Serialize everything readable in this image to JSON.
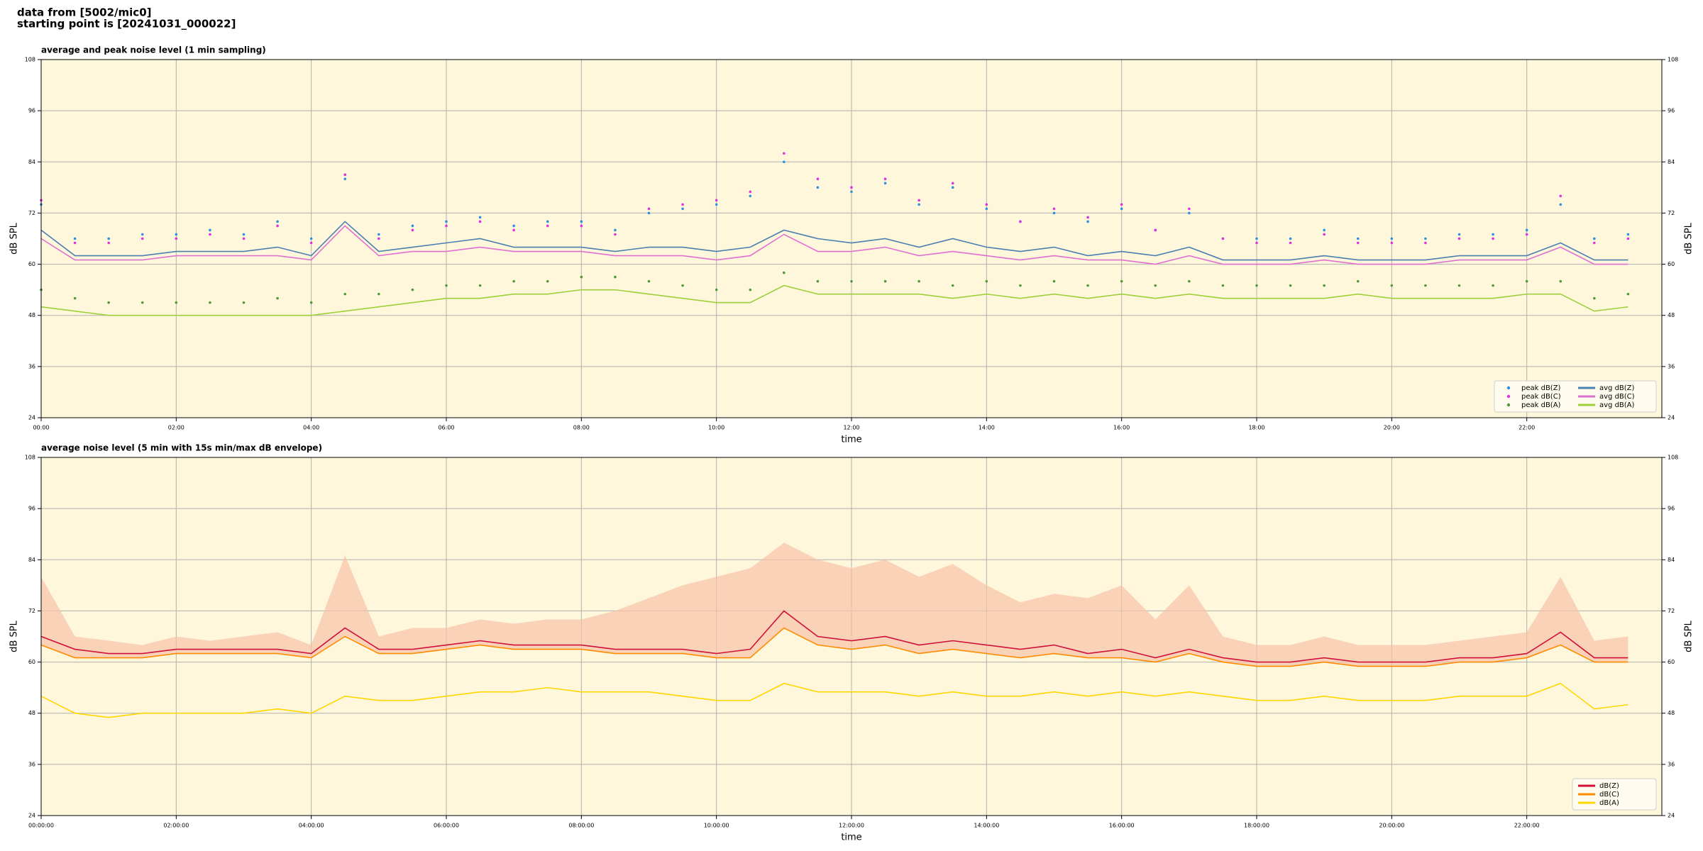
{
  "header": {
    "line1": "data from [5002/mic0]",
    "line2": "starting point is [20241031_000022]"
  },
  "chart_data": [
    {
      "type": "line",
      "title": "average and peak noise level (1 min sampling)",
      "xlabel": "time",
      "ylabel": "dB SPL",
      "xlim": [
        0,
        24
      ],
      "ylim": [
        24,
        108
      ],
      "yticks": [
        24,
        36,
        48,
        60,
        72,
        84,
        96,
        108
      ],
      "xticks": [
        {
          "value": 0,
          "label": "00:00"
        },
        {
          "value": 2,
          "label": "02:00"
        },
        {
          "value": 4,
          "label": "04:00"
        },
        {
          "value": 6,
          "label": "06:00"
        },
        {
          "value": 8,
          "label": "08:00"
        },
        {
          "value": 10,
          "label": "10:00"
        },
        {
          "value": 12,
          "label": "12:00"
        },
        {
          "value": 14,
          "label": "14:00"
        },
        {
          "value": 16,
          "label": "16:00"
        },
        {
          "value": 18,
          "label": "18:00"
        },
        {
          "value": 20,
          "label": "20:00"
        },
        {
          "value": 22,
          "label": "22:00"
        }
      ],
      "grid": true,
      "legend": "lower right",
      "legend_columns": 2,
      "background": "#fff7dc",
      "x": [
        0,
        0.5,
        1,
        1.5,
        2,
        2.5,
        3,
        3.5,
        4,
        4.5,
        5,
        5.5,
        6,
        6.5,
        7,
        7.5,
        8,
        8.5,
        9,
        9.5,
        10,
        10.5,
        11,
        11.5,
        12,
        12.5,
        13,
        13.5,
        14,
        14.5,
        15,
        15.5,
        16,
        16.5,
        17,
        17.5,
        18,
        18.5,
        19,
        19.5,
        20,
        20.5,
        21,
        21.5,
        22,
        22.5,
        23,
        23.5
      ],
      "series": [
        {
          "name": "peak dB(Z)",
          "color": "#2f8fe0",
          "marker": "dot",
          "values": [
            74,
            66,
            66,
            67,
            67,
            68,
            67,
            70,
            66,
            80,
            67,
            69,
            70,
            71,
            69,
            70,
            70,
            68,
            72,
            73,
            74,
            76,
            84,
            78,
            77,
            79,
            74,
            78,
            73,
            70,
            72,
            70,
            73,
            68,
            72,
            66,
            66,
            66,
            68,
            66,
            66,
            66,
            67,
            67,
            68,
            74,
            66,
            67
          ]
        },
        {
          "name": "peak dB(C)",
          "color": "#e030e0",
          "marker": "dot",
          "values": [
            75,
            65,
            65,
            66,
            66,
            67,
            66,
            69,
            65,
            81,
            66,
            68,
            69,
            70,
            68,
            69,
            69,
            67,
            73,
            74,
            75,
            77,
            86,
            80,
            78,
            80,
            75,
            79,
            74,
            70,
            73,
            71,
            74,
            68,
            73,
            66,
            65,
            65,
            67,
            65,
            65,
            65,
            66,
            66,
            67,
            76,
            65,
            66
          ]
        },
        {
          "name": "peak dB(A)",
          "color": "#4f9a3a",
          "marker": "dot",
          "values": [
            54,
            52,
            51,
            51,
            51,
            51,
            51,
            52,
            51,
            53,
            53,
            54,
            55,
            55,
            56,
            56,
            57,
            57,
            56,
            55,
            54,
            54,
            58,
            56,
            56,
            56,
            56,
            55,
            56,
            55,
            56,
            55,
            56,
            55,
            56,
            55,
            55,
            55,
            55,
            56,
            55,
            55,
            55,
            55,
            56,
            56,
            52,
            53
          ]
        },
        {
          "name": "avg dB(Z)",
          "color": "#4a7fb0",
          "marker": "line",
          "values": [
            68,
            62,
            62,
            62,
            63,
            63,
            63,
            64,
            62,
            70,
            63,
            64,
            65,
            66,
            64,
            64,
            64,
            63,
            64,
            64,
            63,
            64,
            68,
            66,
            65,
            66,
            64,
            66,
            64,
            63,
            64,
            62,
            63,
            62,
            64,
            61,
            61,
            61,
            62,
            61,
            61,
            61,
            62,
            62,
            62,
            65,
            61,
            61
          ]
        },
        {
          "name": "avg dB(C)",
          "color": "#e070d0",
          "marker": "line",
          "values": [
            66,
            61,
            61,
            61,
            62,
            62,
            62,
            62,
            61,
            69,
            62,
            63,
            63,
            64,
            63,
            63,
            63,
            62,
            62,
            62,
            61,
            62,
            67,
            63,
            63,
            64,
            62,
            63,
            62,
            61,
            62,
            61,
            61,
            60,
            62,
            60,
            60,
            60,
            61,
            60,
            60,
            60,
            61,
            61,
            61,
            64,
            60,
            60
          ]
        },
        {
          "name": "avg dB(A)",
          "color": "#9fcf3a",
          "marker": "line",
          "values": [
            50,
            49,
            48,
            48,
            48,
            48,
            48,
            48,
            48,
            49,
            50,
            51,
            52,
            52,
            53,
            53,
            54,
            54,
            53,
            52,
            51,
            51,
            55,
            53,
            53,
            53,
            53,
            52,
            53,
            52,
            53,
            52,
            53,
            52,
            53,
            52,
            52,
            52,
            52,
            53,
            52,
            52,
            52,
            52,
            53,
            53,
            49,
            50
          ]
        }
      ]
    },
    {
      "type": "line",
      "title": "average noise level (5 min with 15s min/max dB envelope)",
      "xlabel": "time",
      "ylabel": "dB SPL",
      "xlim": [
        0,
        24
      ],
      "ylim": [
        24,
        108
      ],
      "yticks": [
        24,
        36,
        48,
        60,
        72,
        84,
        96,
        108
      ],
      "xticks": [
        {
          "value": 0,
          "label": "00:00:00"
        },
        {
          "value": 2,
          "label": "02:00:00"
        },
        {
          "value": 4,
          "label": "04:00:00"
        },
        {
          "value": 6,
          "label": "06:00:00"
        },
        {
          "value": 8,
          "label": "08:00:00"
        },
        {
          "value": 10,
          "label": "10:00:00"
        },
        {
          "value": 12,
          "label": "12:00:00"
        },
        {
          "value": 14,
          "label": "14:00:00"
        },
        {
          "value": 16,
          "label": "16:00:00"
        },
        {
          "value": 18,
          "label": "18:00:00"
        },
        {
          "value": 20,
          "label": "20:00:00"
        },
        {
          "value": 22,
          "label": "22:00:00"
        }
      ],
      "grid": true,
      "legend": "lower right",
      "legend_columns": 1,
      "background": "#fff7dc",
      "x": [
        0,
        0.5,
        1,
        1.5,
        2,
        2.5,
        3,
        3.5,
        4,
        4.5,
        5,
        5.5,
        6,
        6.5,
        7,
        7.5,
        8,
        8.5,
        9,
        9.5,
        10,
        10.5,
        11,
        11.5,
        12,
        12.5,
        13,
        13.5,
        14,
        14.5,
        15,
        15.5,
        16,
        16.5,
        17,
        17.5,
        18,
        18.5,
        19,
        19.5,
        20,
        20.5,
        21,
        21.5,
        22,
        22.5,
        23,
        23.5
      ],
      "envelope": {
        "color": "#f6c2a8",
        "values": [
          80,
          66,
          65,
          64,
          66,
          65,
          66,
          67,
          64,
          85,
          66,
          68,
          68,
          70,
          69,
          70,
          70,
          72,
          75,
          78,
          80,
          82,
          88,
          84,
          82,
          84,
          80,
          83,
          78,
          74,
          76,
          75,
          78,
          70,
          78,
          66,
          64,
          64,
          66,
          64,
          64,
          64,
          65,
          66,
          67,
          80,
          65,
          66
        ]
      },
      "series": [
        {
          "name": "dB(Z)",
          "color": "#d0103a",
          "marker": "line",
          "values": [
            66,
            63,
            62,
            62,
            63,
            63,
            63,
            63,
            62,
            68,
            63,
            63,
            64,
            65,
            64,
            64,
            64,
            63,
            63,
            63,
            62,
            63,
            72,
            66,
            65,
            66,
            64,
            65,
            64,
            63,
            64,
            62,
            63,
            61,
            63,
            61,
            60,
            60,
            61,
            60,
            60,
            60,
            61,
            61,
            62,
            67,
            61,
            61
          ]
        },
        {
          "name": "dB(C)",
          "color": "#ff8c00",
          "marker": "line",
          "values": [
            64,
            61,
            61,
            61,
            62,
            62,
            62,
            62,
            61,
            66,
            62,
            62,
            63,
            64,
            63,
            63,
            63,
            62,
            62,
            62,
            61,
            61,
            68,
            64,
            63,
            64,
            62,
            63,
            62,
            61,
            62,
            61,
            61,
            60,
            62,
            60,
            59,
            59,
            60,
            59,
            59,
            59,
            60,
            60,
            61,
            64,
            60,
            60
          ]
        },
        {
          "name": "dB(A)",
          "color": "#ffd700",
          "marker": "line",
          "values": [
            52,
            48,
            47,
            48,
            48,
            48,
            48,
            49,
            48,
            52,
            51,
            51,
            52,
            53,
            53,
            54,
            53,
            53,
            53,
            52,
            51,
            51,
            55,
            53,
            53,
            53,
            52,
            53,
            52,
            52,
            53,
            52,
            53,
            52,
            53,
            52,
            51,
            51,
            52,
            51,
            51,
            51,
            52,
            52,
            52,
            55,
            49,
            50
          ]
        }
      ]
    }
  ]
}
